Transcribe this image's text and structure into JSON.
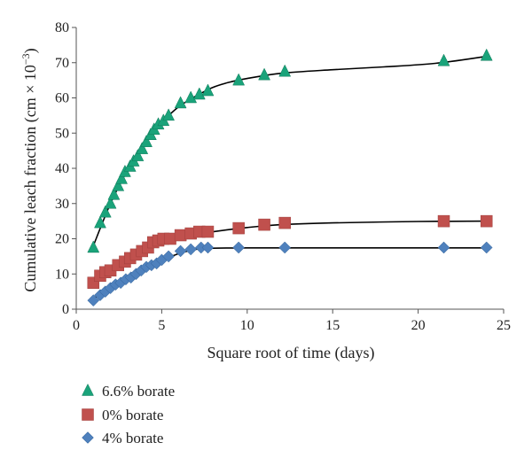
{
  "chart_data": {
    "type": "scatter",
    "title": "",
    "xlabel": "Square root of time (days)",
    "ylabel_main": "Cumulative leach fraction (cm × 10",
    "ylabel_exp": "−3",
    "ylabel_close": ")",
    "xlim": [
      0,
      25
    ],
    "ylim": [
      0,
      80
    ],
    "x_ticks": [
      0,
      5,
      10,
      15,
      20,
      25
    ],
    "y_ticks": [
      0,
      10,
      20,
      30,
      40,
      50,
      60,
      70,
      80
    ],
    "grid": false,
    "legend_position": "bottom-left",
    "series": [
      {
        "name": "6.6% borate",
        "marker": "triangle",
        "color": "#1aa37a",
        "points": [
          [
            1.0,
            17.5
          ],
          [
            1.4,
            24.5
          ],
          [
            1.7,
            27.5
          ],
          [
            2.0,
            30.0
          ],
          [
            2.2,
            32.5
          ],
          [
            2.45,
            35.0
          ],
          [
            2.65,
            37.0
          ],
          [
            2.85,
            39.0
          ],
          [
            3.15,
            40.5
          ],
          [
            3.35,
            42.0
          ],
          [
            3.6,
            43.5
          ],
          [
            3.85,
            45.5
          ],
          [
            4.1,
            47.5
          ],
          [
            4.35,
            49.5
          ],
          [
            4.55,
            51.0
          ],
          [
            4.8,
            52.5
          ],
          [
            5.1,
            53.5
          ],
          [
            5.4,
            55.0
          ],
          [
            6.1,
            58.5
          ],
          [
            6.7,
            60.0
          ],
          [
            7.2,
            61.0
          ],
          [
            7.7,
            62.0
          ],
          [
            9.5,
            65.0
          ],
          [
            11.0,
            66.5
          ],
          [
            12.2,
            67.5
          ],
          [
            21.5,
            70.5
          ],
          [
            24.0,
            72.0
          ]
        ]
      },
      {
        "name": "0% borate",
        "marker": "square",
        "color": "#c0504d",
        "points": [
          [
            1.0,
            7.5
          ],
          [
            1.4,
            9.5
          ],
          [
            1.7,
            10.5
          ],
          [
            2.0,
            11.0
          ],
          [
            2.45,
            12.5
          ],
          [
            2.85,
            13.5
          ],
          [
            3.15,
            14.5
          ],
          [
            3.5,
            15.5
          ],
          [
            3.85,
            16.5
          ],
          [
            4.2,
            17.5
          ],
          [
            4.5,
            19.0
          ],
          [
            4.8,
            19.5
          ],
          [
            5.1,
            20.0
          ],
          [
            5.5,
            20.0
          ],
          [
            6.1,
            21.0
          ],
          [
            6.7,
            21.5
          ],
          [
            7.2,
            22.0
          ],
          [
            7.7,
            22.0
          ],
          [
            9.5,
            23.0
          ],
          [
            11.0,
            24.0
          ],
          [
            12.2,
            24.5
          ],
          [
            21.5,
            25.0
          ],
          [
            24.0,
            25.0
          ]
        ]
      },
      {
        "name": "4% borate",
        "marker": "diamond",
        "color": "#4f81bd",
        "points": [
          [
            1.0,
            2.5
          ],
          [
            1.4,
            4.0
          ],
          [
            1.7,
            5.0
          ],
          [
            2.0,
            6.0
          ],
          [
            2.3,
            7.0
          ],
          [
            2.6,
            7.5
          ],
          [
            2.9,
            8.5
          ],
          [
            3.2,
            9.0
          ],
          [
            3.5,
            10.0
          ],
          [
            3.8,
            11.0
          ],
          [
            4.1,
            12.0
          ],
          [
            4.4,
            12.5
          ],
          [
            4.7,
            13.0
          ],
          [
            5.0,
            14.0
          ],
          [
            5.4,
            15.0
          ],
          [
            6.1,
            16.5
          ],
          [
            6.7,
            17.0
          ],
          [
            7.3,
            17.5
          ],
          [
            7.7,
            17.5
          ],
          [
            9.5,
            17.5
          ],
          [
            12.2,
            17.5
          ],
          [
            21.5,
            17.5
          ],
          [
            24.0,
            17.5
          ]
        ]
      }
    ],
    "fit_curves": [
      {
        "series": "6.6% borate",
        "points": [
          [
            1.0,
            18.0
          ],
          [
            2.0,
            30.0
          ],
          [
            3.0,
            39.5
          ],
          [
            4.0,
            47.0
          ],
          [
            5.0,
            53.0
          ],
          [
            6.0,
            57.5
          ],
          [
            7.0,
            60.5
          ],
          [
            8.0,
            63.0
          ],
          [
            9.0,
            64.5
          ],
          [
            10.0,
            65.5
          ],
          [
            12.0,
            67.0
          ],
          [
            15.0,
            68.0
          ],
          [
            18.0,
            68.8
          ],
          [
            21.0,
            69.8
          ],
          [
            24.0,
            71.8
          ]
        ]
      },
      {
        "series": "0% borate",
        "points": [
          [
            1.0,
            8.0
          ],
          [
            2.0,
            11.5
          ],
          [
            3.0,
            14.0
          ],
          [
            4.0,
            16.5
          ],
          [
            5.0,
            18.5
          ],
          [
            6.0,
            20.0
          ],
          [
            7.0,
            21.2
          ],
          [
            8.0,
            22.0
          ],
          [
            10.0,
            23.2
          ],
          [
            12.0,
            24.0
          ],
          [
            15.0,
            24.5
          ],
          [
            20.0,
            24.9
          ],
          [
            24.0,
            25.0
          ]
        ]
      },
      {
        "series": "4% borate",
        "points": [
          [
            1.0,
            3.0
          ],
          [
            2.0,
            6.0
          ],
          [
            3.0,
            8.8
          ],
          [
            4.0,
            11.5
          ],
          [
            5.0,
            13.8
          ],
          [
            6.0,
            15.8
          ],
          [
            7.0,
            17.0
          ],
          [
            8.0,
            17.3
          ],
          [
            10.0,
            17.4
          ],
          [
            15.0,
            17.4
          ],
          [
            20.0,
            17.4
          ],
          [
            24.0,
            17.4
          ]
        ]
      }
    ]
  }
}
